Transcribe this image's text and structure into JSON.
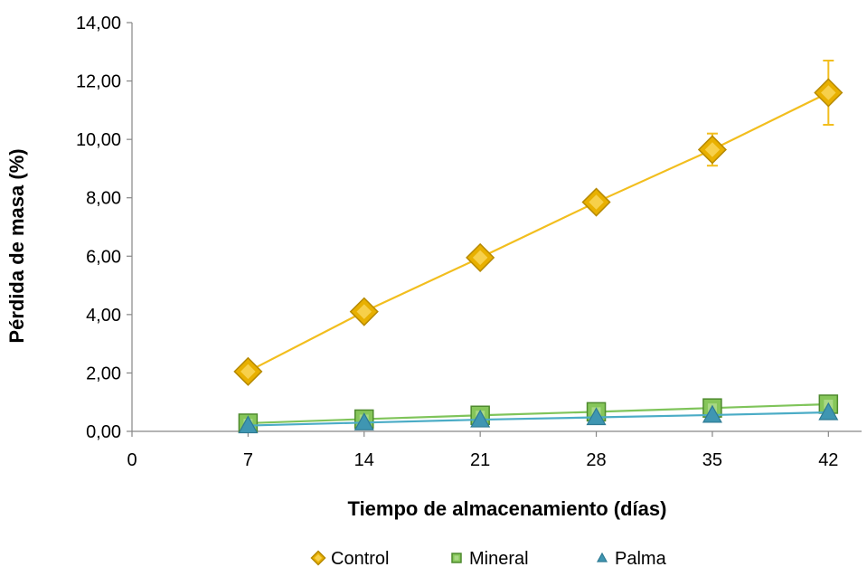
{
  "chart_data": {
    "type": "line",
    "title": "",
    "xlabel": "Tiempo de almacenamiento (días)",
    "ylabel": "Pérdida de masa (%)",
    "x_ticks": [
      "0",
      "7",
      "14",
      "21",
      "28",
      "35",
      "42"
    ],
    "y_ticks": [
      "0,00",
      "2,00",
      "4,00",
      "6,00",
      "8,00",
      "10,00",
      "12,00",
      "14,00"
    ],
    "xlim": [
      0,
      44
    ],
    "ylim": [
      0,
      14
    ],
    "grid": false,
    "legend_position": "bottom",
    "x": [
      7,
      14,
      21,
      28,
      35,
      42
    ],
    "series": [
      {
        "name": "Control",
        "marker": "diamond",
        "line_color": "#F2BE1E",
        "marker_color": "#E8B000",
        "values": [
          2.05,
          4.1,
          5.95,
          7.85,
          9.65,
          11.6
        ],
        "error": [
          0.05,
          0.05,
          0.05,
          0.05,
          0.55,
          1.1
        ]
      },
      {
        "name": "Mineral",
        "marker": "square",
        "line_color": "#7FC45A",
        "marker_color": "#86C65A",
        "values": [
          0.28,
          0.42,
          0.55,
          0.67,
          0.8,
          0.93
        ],
        "error": [
          0,
          0,
          0,
          0,
          0,
          0
        ]
      },
      {
        "name": "Palma",
        "marker": "triangle",
        "line_color": "#4BACC6",
        "marker_color": "#3F96B2",
        "values": [
          0.2,
          0.3,
          0.4,
          0.48,
          0.56,
          0.65
        ],
        "error": [
          0,
          0,
          0,
          0,
          0,
          0
        ]
      }
    ]
  }
}
